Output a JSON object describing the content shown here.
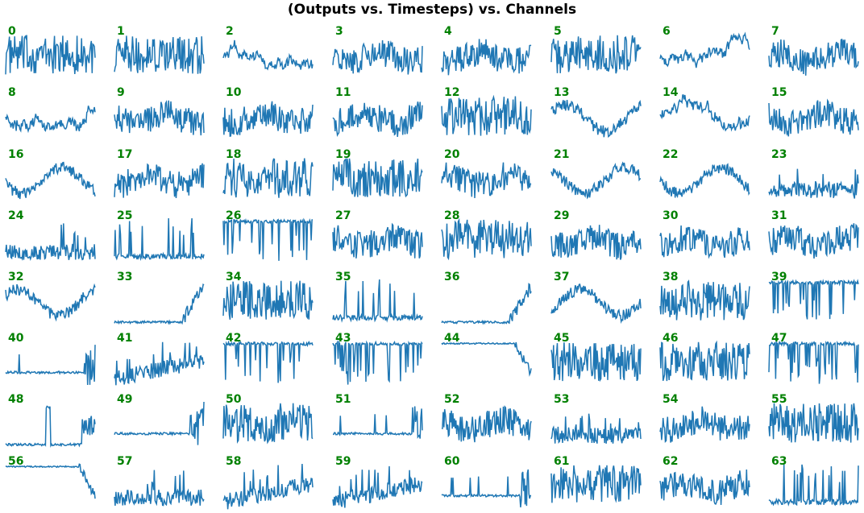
{
  "chart_data": {
    "type": "line",
    "title": "(Outputs vs. Timesteps) vs. Channels",
    "rows": 8,
    "cols": 8,
    "line_color": "#1f77b4",
    "label_color": "#008000",
    "axes_visible": false,
    "panels": [
      {
        "label": "0",
        "style": "noisy-high"
      },
      {
        "label": "1",
        "style": "noisy-high"
      },
      {
        "label": "2",
        "style": "wander-high"
      },
      {
        "label": "3",
        "style": "noisy-mid"
      },
      {
        "label": "4",
        "style": "noisy-mid"
      },
      {
        "label": "5",
        "style": "noisy-high"
      },
      {
        "label": "6",
        "style": "wander-high"
      },
      {
        "label": "7",
        "style": "noisy-mid"
      },
      {
        "label": "8",
        "style": "wander-high"
      },
      {
        "label": "9",
        "style": "noisy-mid"
      },
      {
        "label": "10",
        "style": "noisy-mid"
      },
      {
        "label": "11",
        "style": "noisy-mid"
      },
      {
        "label": "12",
        "style": "noisy-high"
      },
      {
        "label": "13",
        "style": "wander-mid"
      },
      {
        "label": "14",
        "style": "wander-high"
      },
      {
        "label": "15",
        "style": "noisy-mid"
      },
      {
        "label": "16",
        "style": "wander-mid"
      },
      {
        "label": "17",
        "style": "noisy-mid"
      },
      {
        "label": "18",
        "style": "noisy-high"
      },
      {
        "label": "19",
        "style": "noisy-high"
      },
      {
        "label": "20",
        "style": "noisy-mid"
      },
      {
        "label": "21",
        "style": "wander-mid"
      },
      {
        "label": "22",
        "style": "wander-mid"
      },
      {
        "label": "23",
        "style": "noisy-low"
      },
      {
        "label": "24",
        "style": "noisy-low"
      },
      {
        "label": "25",
        "style": "spiky-low"
      },
      {
        "label": "26",
        "style": "top-dips"
      },
      {
        "label": "27",
        "style": "noisy-mid"
      },
      {
        "label": "28",
        "style": "noisy-high"
      },
      {
        "label": "29",
        "style": "noisy-mid"
      },
      {
        "label": "30",
        "style": "noisy-mid"
      },
      {
        "label": "31",
        "style": "noisy-mid"
      },
      {
        "label": "32",
        "style": "wander-mid"
      },
      {
        "label": "33",
        "style": "flat-low-rise"
      },
      {
        "label": "34",
        "style": "noisy-high"
      },
      {
        "label": "35",
        "style": "spiky-low"
      },
      {
        "label": "36",
        "style": "flat-low-rise"
      },
      {
        "label": "37",
        "style": "wander-mid"
      },
      {
        "label": "38",
        "style": "noisy-high"
      },
      {
        "label": "39",
        "style": "top-dips"
      },
      {
        "label": "40",
        "style": "flat-mid-spike"
      },
      {
        "label": "41",
        "style": "noisy-low-rise"
      },
      {
        "label": "42",
        "style": "top-dips"
      },
      {
        "label": "43",
        "style": "top-dips"
      },
      {
        "label": "44",
        "style": "flat-top-drop"
      },
      {
        "label": "45",
        "style": "noisy-high"
      },
      {
        "label": "46",
        "style": "noisy-high"
      },
      {
        "label": "47",
        "style": "top-dips"
      },
      {
        "label": "48",
        "style": "flat-low-spike"
      },
      {
        "label": "49",
        "style": "flat-mid-spike"
      },
      {
        "label": "50",
        "style": "noisy-high"
      },
      {
        "label": "51",
        "style": "flat-mid-spike"
      },
      {
        "label": "52",
        "style": "noisy-mid"
      },
      {
        "label": "53",
        "style": "noisy-low"
      },
      {
        "label": "54",
        "style": "noisy-mid"
      },
      {
        "label": "55",
        "style": "noisy-high"
      },
      {
        "label": "56",
        "style": "flat-top-drop"
      },
      {
        "label": "57",
        "style": "noisy-low"
      },
      {
        "label": "58",
        "style": "noisy-low-rise"
      },
      {
        "label": "59",
        "style": "noisy-low-rise"
      },
      {
        "label": "60",
        "style": "flat-mid-spike"
      },
      {
        "label": "61",
        "style": "noisy-high"
      },
      {
        "label": "62",
        "style": "noisy-mid"
      },
      {
        "label": "63",
        "style": "spiky-low"
      }
    ]
  }
}
